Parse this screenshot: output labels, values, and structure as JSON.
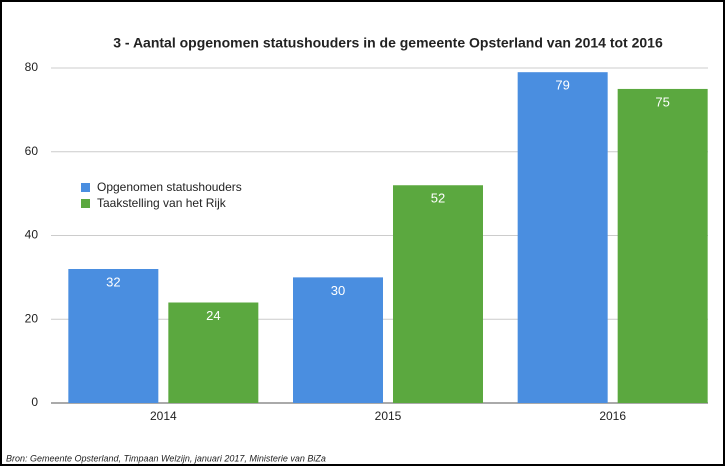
{
  "chart_data": {
    "type": "bar",
    "title": "3 - Aantal opgenomen statushouders in de gemeente Opsterland van 2014 tot 2016",
    "categories": [
      "2014",
      "2015",
      "2016"
    ],
    "series": [
      {
        "name": "Opgenomen statushouders",
        "color": "#4a8ee0",
        "values": [
          32,
          30,
          79
        ]
      },
      {
        "name": "Taakstelling van het Rijk",
        "color": "#5ba83f",
        "values": [
          24,
          52,
          75
        ]
      }
    ],
    "ylim": [
      0,
      80
    ],
    "yticks": [
      0,
      20,
      40,
      60,
      80
    ],
    "grid": true,
    "legend": "left",
    "source": "Bron:  Gemeente Opsterland, Timpaan Welzijn, januari 2017, Ministerie van BiZa"
  }
}
